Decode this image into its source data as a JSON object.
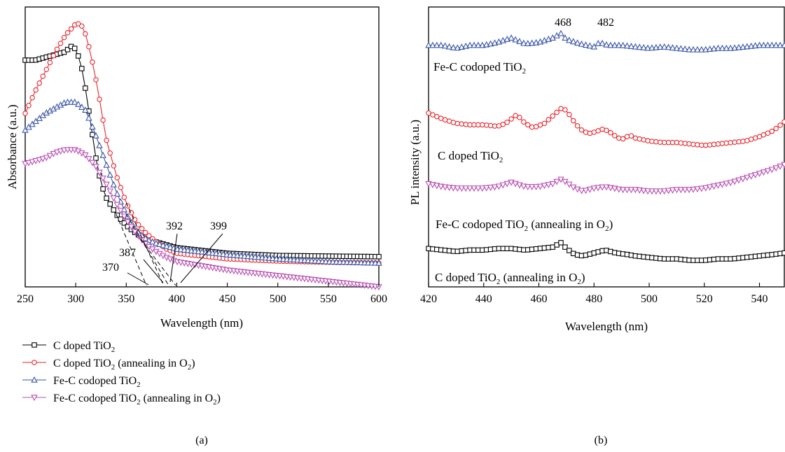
{
  "chart_data": [
    {
      "panel": "(a)",
      "type": "line",
      "xlabel": "Wavelength (nm)",
      "ylabel": "Absorbance (a.u.)",
      "xlim": [
        250,
        600
      ],
      "xticks": [
        250,
        300,
        350,
        400,
        450,
        500,
        550,
        600
      ],
      "yaxis_tick_labels": false,
      "grid": false,
      "legend_position": "below",
      "series": [
        {
          "name": "C doped TiO2",
          "color": "#000000",
          "marker": "square",
          "x": [
            250,
            260,
            270,
            280,
            290,
            295,
            300,
            305,
            310,
            315,
            320,
            325,
            330,
            340,
            350,
            360,
            370,
            380,
            390,
            400,
            450,
            500,
            550,
            600
          ],
          "y": [
            0.81,
            0.81,
            0.82,
            0.83,
            0.84,
            0.86,
            0.85,
            0.8,
            0.7,
            0.58,
            0.46,
            0.37,
            0.32,
            0.26,
            0.22,
            0.19,
            0.17,
            0.16,
            0.15,
            0.14,
            0.12,
            0.112,
            0.11,
            0.108
          ]
        },
        {
          "name": "C doped TiO2 (annealing in O2)",
          "color": "#e8262d",
          "marker": "circle",
          "x": [
            250,
            260,
            270,
            280,
            290,
            300,
            305,
            310,
            315,
            320,
            325,
            330,
            340,
            350,
            360,
            370,
            380,
            390,
            400,
            450,
            500,
            550,
            600
          ],
          "y": [
            0.62,
            0.7,
            0.77,
            0.84,
            0.9,
            0.94,
            0.94,
            0.9,
            0.83,
            0.74,
            0.64,
            0.53,
            0.4,
            0.3,
            0.23,
            0.19,
            0.16,
            0.135,
            0.12,
            0.1,
            0.092,
            0.088,
            0.085
          ]
        },
        {
          "name": "Fe-C codoped TiO2",
          "color": "#3a56a8",
          "marker": "triangle-up",
          "x": [
            250,
            260,
            270,
            280,
            290,
            300,
            310,
            320,
            330,
            340,
            350,
            360,
            370,
            380,
            390,
            400,
            450,
            500,
            550,
            600
          ],
          "y": [
            0.56,
            0.59,
            0.62,
            0.64,
            0.66,
            0.66,
            0.63,
            0.54,
            0.44,
            0.34,
            0.26,
            0.2,
            0.17,
            0.155,
            0.145,
            0.135,
            0.115,
            0.1,
            0.09,
            0.085
          ]
        },
        {
          "name": "Fe-C codoped TiO2 (annealing in O2)",
          "color": "#b94fb3",
          "marker": "triangle-down",
          "x": [
            250,
            260,
            270,
            280,
            290,
            300,
            310,
            320,
            330,
            340,
            350,
            360,
            370,
            380,
            390,
            400,
            450,
            500,
            550,
            600
          ],
          "y": [
            0.44,
            0.45,
            0.46,
            0.48,
            0.49,
            0.49,
            0.47,
            0.43,
            0.37,
            0.3,
            0.24,
            0.19,
            0.15,
            0.125,
            0.105,
            0.09,
            0.06,
            0.04,
            0.02,
            0.0
          ]
        }
      ],
      "annotations": [
        {
          "text": "370",
          "x": 370
        },
        {
          "text": "387",
          "x": 387
        },
        {
          "text": "392",
          "x": 392
        },
        {
          "text": "399",
          "x": 399
        }
      ]
    },
    {
      "panel": "(b)",
      "type": "line",
      "xlabel": "Wavelength (nm)",
      "ylabel": "PL intensity (a.u.)",
      "xlim": [
        420,
        549
      ],
      "xticks": [
        420,
        440,
        460,
        480,
        500,
        520,
        540
      ],
      "yaxis_tick_labels": false,
      "grid": false,
      "series": [
        {
          "name": "Fe-C codoped TiO2",
          "color": "#3a56a8",
          "marker": "triangle-up",
          "x": [
            420,
            425,
            430,
            435,
            440,
            445,
            450,
            455,
            460,
            465,
            468,
            470,
            475,
            480,
            482,
            485,
            490,
            495,
            500,
            505,
            510,
            515,
            520,
            525,
            530,
            535,
            540,
            545,
            549
          ],
          "y": [
            8.2,
            8.2,
            8.1,
            8.2,
            8.2,
            8.3,
            8.45,
            8.25,
            8.3,
            8.45,
            8.6,
            8.4,
            8.25,
            8.15,
            8.3,
            8.2,
            8.2,
            8.15,
            8.1,
            8.15,
            8.1,
            8.05,
            8.05,
            8.1,
            8.1,
            8.15,
            8.2,
            8.2,
            8.2
          ]
        },
        {
          "name": "C doped TiO2",
          "color": "#e8262d",
          "marker": "circle",
          "x": [
            420,
            425,
            430,
            435,
            440,
            445,
            448,
            452,
            455,
            458,
            462,
            465,
            468,
            470,
            472,
            475,
            478,
            480,
            483,
            485,
            488,
            490,
            493,
            495,
            500,
            505,
            510,
            515,
            520,
            525,
            530,
            535,
            540,
            545,
            549
          ],
          "y": [
            5.9,
            5.7,
            5.55,
            5.5,
            5.5,
            5.45,
            5.55,
            5.85,
            5.55,
            5.4,
            5.55,
            5.8,
            6.05,
            6.0,
            5.7,
            5.35,
            5.2,
            5.25,
            5.35,
            5.3,
            5.1,
            5.0,
            5.15,
            5.05,
            4.95,
            4.9,
            4.9,
            4.85,
            4.8,
            4.85,
            4.9,
            4.95,
            5.1,
            5.3,
            5.6
          ]
        },
        {
          "name": "Fe-C codoped TiO2 (annealing in O2)",
          "color": "#b94fb3",
          "marker": "triangle-down",
          "x": [
            420,
            425,
            430,
            435,
            440,
            445,
            450,
            455,
            460,
            465,
            468,
            470,
            473,
            476,
            480,
            484,
            490,
            495,
            500,
            505,
            510,
            515,
            520,
            525,
            530,
            535,
            540,
            545,
            549
          ],
          "y": [
            3.5,
            3.4,
            3.35,
            3.35,
            3.35,
            3.4,
            3.55,
            3.4,
            3.4,
            3.5,
            3.65,
            3.55,
            3.35,
            3.25,
            3.35,
            3.4,
            3.3,
            3.3,
            3.25,
            3.25,
            3.3,
            3.3,
            3.35,
            3.45,
            3.55,
            3.7,
            3.85,
            4.0,
            4.15
          ]
        },
        {
          "name": "C doped TiO2 (annealing in O2)",
          "color": "#000000",
          "marker": "square",
          "x": [
            420,
            425,
            430,
            435,
            440,
            445,
            450,
            455,
            460,
            465,
            468,
            470,
            473,
            476,
            480,
            484,
            488,
            492,
            495,
            500,
            505,
            510,
            515,
            520,
            525,
            530,
            535,
            540,
            545,
            549
          ],
          "y": [
            1.3,
            1.25,
            1.2,
            1.25,
            1.25,
            1.3,
            1.3,
            1.25,
            1.3,
            1.35,
            1.5,
            1.3,
            1.1,
            1.05,
            1.15,
            1.25,
            1.15,
            1.1,
            1.05,
            1.0,
            0.95,
            0.95,
            0.9,
            0.9,
            0.95,
            0.95,
            1.0,
            1.05,
            1.1,
            1.15
          ]
        }
      ],
      "annotations": [
        {
          "text": "468",
          "x": 468
        },
        {
          "text": "482",
          "x": 482
        }
      ]
    }
  ],
  "texts": {
    "a": {
      "xlabel": "Wavelength (nm)",
      "ylabel": "Absorbance (a.u.)",
      "panel": "(a)",
      "ticks": [
        "250",
        "300",
        "350",
        "400",
        "450",
        "500",
        "550",
        "600"
      ],
      "annot": [
        "370",
        "387",
        "392",
        "399"
      ],
      "legend": [
        {
          "main": "C doped TiO",
          "sub": "2",
          "tail": "",
          "sub2": "",
          "end": ""
        },
        {
          "main": "C doped TiO",
          "sub": "2",
          "tail": " (annealing in O",
          "sub2": "2",
          "end": ")"
        },
        {
          "main": "Fe-C codoped TiO",
          "sub": "2",
          "tail": "",
          "sub2": "",
          "end": ""
        },
        {
          "main": "Fe-C codoped TiO",
          "sub": "2",
          "tail": " (annealing in O",
          "sub2": "2",
          "end": ")"
        }
      ]
    },
    "b": {
      "xlabel": "Wavelength (nm)",
      "ylabel": "PL intensity (a.u.)",
      "panel": "(b)",
      "ticks": [
        "420",
        "440",
        "460",
        "480",
        "500",
        "520",
        "540"
      ],
      "annot": [
        "468",
        "482"
      ],
      "series_labels": [
        {
          "main": "Fe-C codoped TiO",
          "sub": "2",
          "tail": "",
          "sub2": "",
          "end": ""
        },
        {
          "main": "C doped TiO",
          "sub": "2",
          "tail": "",
          "sub2": "",
          "end": ""
        },
        {
          "main": "Fe-C codoped TiO",
          "sub": "2",
          "tail": " (annealing in O",
          "sub2": "2",
          "end": ")"
        },
        {
          "main": "C doped TiO",
          "sub": "2",
          "tail": " (annealing in O",
          "sub2": "2",
          "end": ")"
        }
      ]
    }
  }
}
